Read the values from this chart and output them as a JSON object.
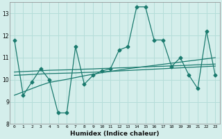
{
  "x": [
    0,
    1,
    2,
    3,
    4,
    5,
    6,
    7,
    8,
    9,
    10,
    11,
    12,
    13,
    14,
    15,
    16,
    17,
    18,
    19,
    20,
    21,
    22,
    23
  ],
  "y_main": [
    11.8,
    9.3,
    9.9,
    10.5,
    10.0,
    8.5,
    8.5,
    11.5,
    9.8,
    10.2,
    10.4,
    10.5,
    11.35,
    11.5,
    13.3,
    13.3,
    11.8,
    11.8,
    10.6,
    11.0,
    10.2,
    9.6,
    12.2,
    10.2
  ],
  "y_smooth1": [
    9.3,
    9.45,
    9.6,
    9.75,
    9.88,
    9.95,
    10.02,
    10.1,
    10.18,
    10.25,
    10.32,
    10.38,
    10.44,
    10.5,
    10.55,
    10.6,
    10.65,
    10.7,
    10.75,
    10.8,
    10.85,
    10.9,
    10.95,
    11.0
  ],
  "y_smooth2": [
    10.2,
    10.22,
    10.24,
    10.26,
    10.28,
    10.29,
    10.3,
    10.31,
    10.33,
    10.34,
    10.36,
    10.38,
    10.4,
    10.42,
    10.44,
    10.46,
    10.48,
    10.5,
    10.52,
    10.54,
    10.56,
    10.58,
    10.6,
    10.62
  ],
  "y_smooth3": [
    10.35,
    10.37,
    10.39,
    10.41,
    10.43,
    10.44,
    10.45,
    10.46,
    10.48,
    10.49,
    10.51,
    10.52,
    10.54,
    10.55,
    10.57,
    10.58,
    10.6,
    10.61,
    10.63,
    10.64,
    10.66,
    10.68,
    10.69,
    10.71
  ],
  "line_color": "#1a7a6e",
  "bg_color": "#d4eeeb",
  "grid_color": "#b5ddd9",
  "xlabel": "Humidex (Indice chaleur)",
  "ylim": [
    8,
    13.5
  ],
  "xlim": [
    -0.5,
    23.5
  ],
  "yticks": [
    8,
    9,
    10,
    11,
    12,
    13
  ],
  "xticks": [
    0,
    1,
    2,
    3,
    4,
    5,
    6,
    7,
    8,
    9,
    10,
    11,
    12,
    13,
    14,
    15,
    16,
    17,
    18,
    19,
    20,
    21,
    22,
    23
  ],
  "marker": "D",
  "markersize": 2.5,
  "linewidth": 0.9
}
